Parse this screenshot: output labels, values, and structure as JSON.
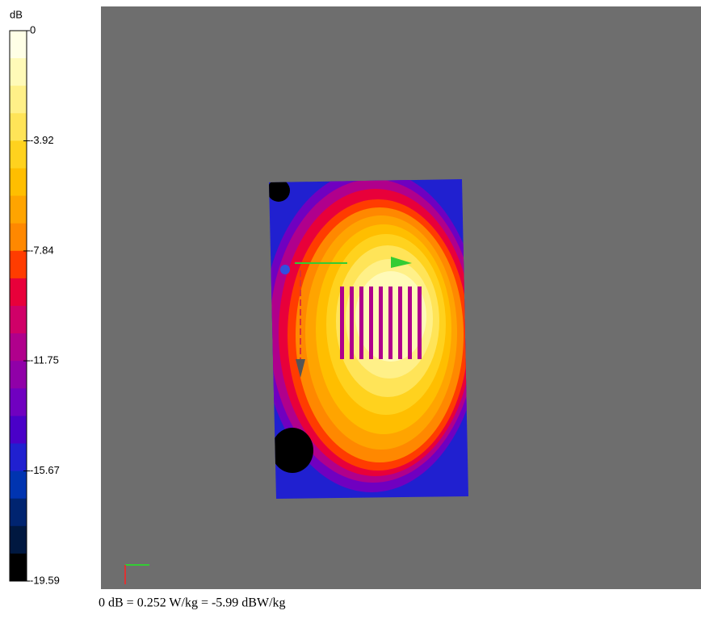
{
  "colorbar": {
    "label": "dB",
    "lim": [
      0,
      -19.59
    ],
    "ticks": [
      0,
      -3.92,
      -7.84,
      -11.75,
      -15.67,
      -19.59
    ],
    "colors": [
      "#ffffe6",
      "#fffab8",
      "#fff088",
      "#ffe458",
      "#ffd21e",
      "#ffbe00",
      "#ffa400",
      "#ff8800",
      "#ff3c00",
      "#e8003a",
      "#d00068",
      "#b0008c",
      "#9000a8",
      "#7000c0",
      "#4a00c8",
      "#2020d0",
      "#0034b0",
      "#002470",
      "#001840",
      "#000000"
    ]
  },
  "caption": "0 dB = 0.252 W/kg = -5.99 dBW/kg"
}
